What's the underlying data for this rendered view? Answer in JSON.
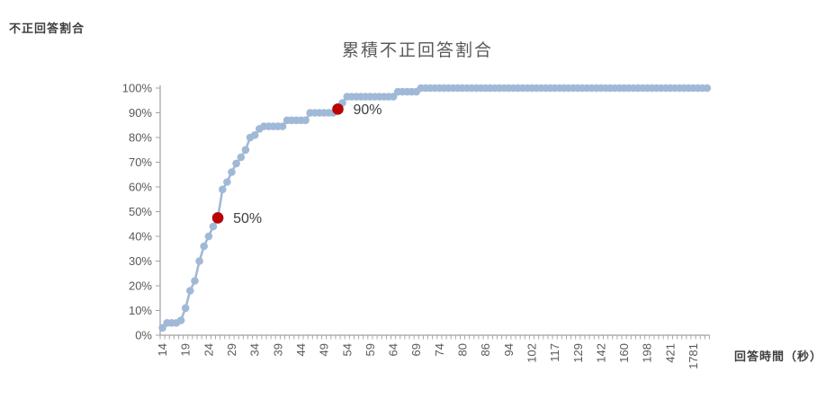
{
  "header": {
    "title": "累積不正回答割合"
  },
  "chart_data": {
    "type": "line",
    "title": "累積不正回答割合",
    "xlabel": "回答時間（秒）",
    "ylabel": "不正回答割合",
    "legend": "none",
    "grid": false,
    "ylim": [
      0,
      100
    ],
    "y_ticks": [
      "0%",
      "10%",
      "20%",
      "30%",
      "40%",
      "50%",
      "60%",
      "70%",
      "80%",
      "90%",
      "100%"
    ],
    "x_tick_labels": [
      "14",
      "19",
      "24",
      "29",
      "34",
      "39",
      "44",
      "49",
      "54",
      "59",
      "64",
      "69",
      "74",
      "80",
      "86",
      "94",
      "102",
      "117",
      "129",
      "142",
      "160",
      "198",
      "421",
      "1781"
    ],
    "x_tick_label_every": 5,
    "values_pct": [
      3,
      5,
      5,
      5,
      6,
      11,
      18,
      22,
      30,
      36,
      40,
      44,
      47.5,
      59,
      62,
      66,
      69.5,
      72,
      75,
      80,
      81,
      83.5,
      84.5,
      84.5,
      84.5,
      84.5,
      84.5,
      87,
      87,
      87,
      87,
      87,
      90,
      90,
      90,
      90,
      90,
      90,
      91.5,
      94,
      96.5,
      96.5,
      96.5,
      96.5,
      96.5,
      96.5,
      96.5,
      96.5,
      96.5,
      96.5,
      96.5,
      98.5,
      98.5,
      98.5,
      98.5,
      98.5,
      100,
      100,
      100,
      100,
      100,
      100,
      100,
      100,
      100,
      100,
      100,
      100,
      100,
      100,
      100,
      100,
      100,
      100,
      100,
      100,
      100,
      100,
      100,
      100,
      100,
      100,
      100,
      100,
      100,
      100,
      100,
      100,
      100,
      100,
      100,
      100,
      100,
      100,
      100,
      100,
      100,
      100,
      100,
      100,
      100,
      100,
      100,
      100,
      100,
      100,
      100,
      100,
      100,
      100,
      100,
      100,
      100,
      100,
      100,
      100,
      100,
      100,
      100
    ],
    "markers": [
      {
        "label": "50%",
        "index": 12,
        "value_pct": 47.5,
        "color": "#c00000"
      },
      {
        "label": "90%",
        "index": 38,
        "value_pct": 91.5,
        "color": "#c00000"
      }
    ],
    "series_color": "#a0b9d7",
    "marker_color": "#c00000",
    "axis_color": "#a0a0a0",
    "tick_label_color": "#595959",
    "annotation_color": "#404040"
  }
}
